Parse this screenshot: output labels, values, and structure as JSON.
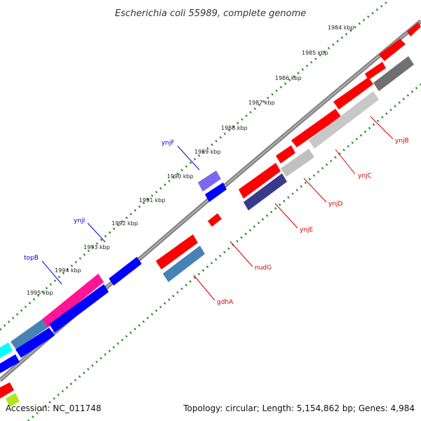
{
  "title": "Escherichia coli 55989, complete genome",
  "footer": {
    "accession": "Accession: NC_011748",
    "summary": "Topology: circular; Length: 5,154,862 bp; Genes: 4,984"
  },
  "tick_labels": [
    "1984 kbp",
    "1985 kbp",
    "1986 kbp",
    "1987 kbp",
    "1988 kbp",
    "1989 kbp",
    "1990 kbp",
    "1991 kbp",
    "1992 kbp",
    "1993 kbp",
    "1994 kbp",
    "1995 kbp"
  ],
  "gene_labels": [
    {
      "text": "ynjF",
      "color": "#0000cc"
    },
    {
      "text": "ynjI",
      "color": "#0000cc"
    },
    {
      "text": "topB",
      "color": "#0000cc"
    },
    {
      "text": "ynjB",
      "color": "#cc0000"
    },
    {
      "text": "ynjC",
      "color": "#cc0000"
    },
    {
      "text": "ynjD",
      "color": "#cc0000"
    },
    {
      "text": "ynjE",
      "color": "#cc0000"
    },
    {
      "text": "nudG",
      "color": "#cc0000"
    },
    {
      "text": "gdhA",
      "color": "#cc0000"
    }
  ],
  "colors": {
    "backbone": "#808080",
    "forward_cds": "#0000ff",
    "reverse_cds": "#ff0000",
    "rna": "#4682b4",
    "dotted_track": "#228b22",
    "highlight_pink": "#ff1493",
    "pale_grey": "#c8c8c8",
    "dark_grey": "#707070",
    "dark_blue": "#3a3a8c",
    "lavender": "#7b68ee",
    "cyan": "#00ffff"
  }
}
